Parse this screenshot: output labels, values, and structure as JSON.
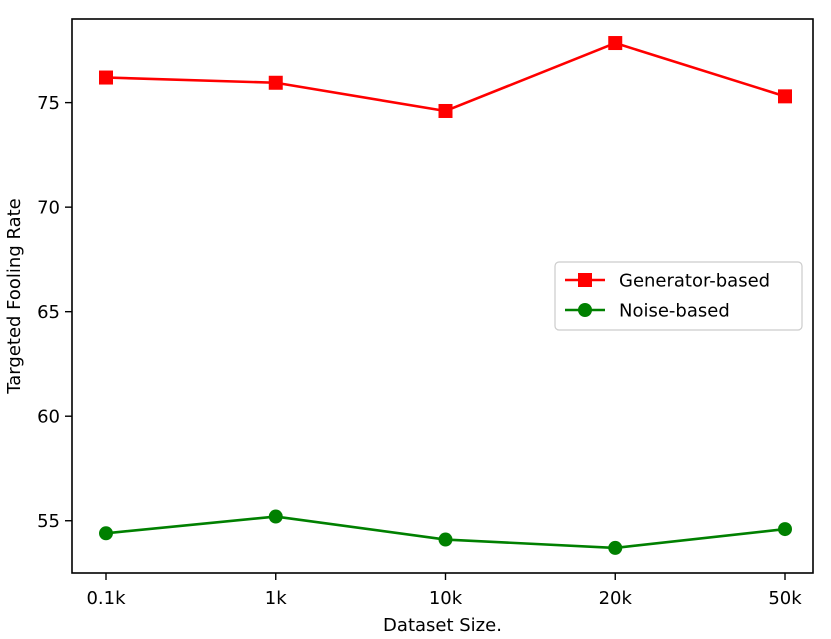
{
  "chart_data": {
    "type": "line",
    "title": "",
    "xlabel": "Dataset Size.",
    "ylabel": "Targeted Fooling Rate",
    "categories": [
      "0.1k",
      "1k",
      "10k",
      "20k",
      "50k"
    ],
    "ylim": [
      52.5,
      79.0
    ],
    "yticks": [
      55,
      60,
      65,
      70,
      75
    ],
    "grid": false,
    "legend_position": "right",
    "series": [
      {
        "name": "Generator-based",
        "values": [
          76.2,
          75.95,
          74.6,
          77.85,
          75.3
        ],
        "color": "#ff0000",
        "marker": "square"
      },
      {
        "name": "Noise-based",
        "values": [
          54.4,
          55.2,
          54.1,
          53.7,
          54.6
        ],
        "color": "#008000",
        "marker": "circle"
      }
    ]
  }
}
